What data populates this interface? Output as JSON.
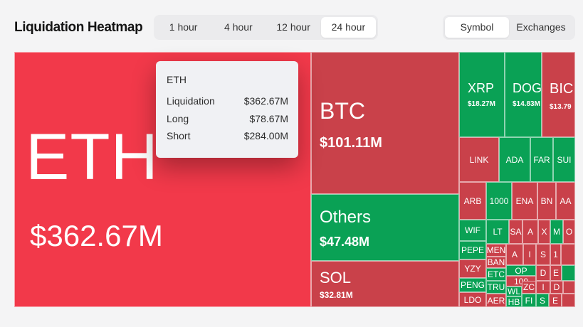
{
  "header": {
    "title": "Liquidation Heatmap",
    "time_options": [
      "1 hour",
      "4 hour",
      "12 hour",
      "24 hour"
    ],
    "time_selected": "24 hour",
    "view_options": [
      "Symbol",
      "Exchanges"
    ],
    "view_selected": "Symbol"
  },
  "tooltip": {
    "symbol": "ETH",
    "rows": [
      {
        "label": "Liquidation",
        "value": "$362.67M"
      },
      {
        "label": "Long",
        "value": "$78.67M"
      },
      {
        "label": "Short",
        "value": "$284.00M"
      }
    ]
  },
  "heatmap": {
    "big": [
      {
        "symbol": "ETH",
        "value": "$362.67M",
        "color": "#f2394a"
      },
      {
        "symbol": "BTC",
        "value": "$101.11M",
        "color": "#c9414a"
      },
      {
        "symbol": "Others",
        "value": "$47.48M",
        "color": "#0aa155"
      },
      {
        "symbol": "SOL",
        "value": "$32.81M",
        "color": "#c9414a"
      },
      {
        "symbol": "XRP",
        "value": "$18.27M",
        "color": "#0aa155"
      },
      {
        "symbol": "DOG",
        "value": "$14.83M",
        "color": "#0aa155"
      },
      {
        "symbol": "BIC",
        "value": "$13.79",
        "color": "#c9414a"
      }
    ],
    "small": [
      "LINK",
      "ADA",
      "FAR",
      "SUI",
      "ARB",
      "1000",
      "ENA",
      "BN",
      "AA",
      "WIF",
      "LT",
      "SA",
      "A",
      "X",
      "M",
      "O",
      "PEPE",
      "MEN",
      "A",
      "I",
      "S",
      "BAN",
      "1",
      "YZY",
      "ETC",
      "OP",
      "D",
      "E",
      "100",
      "E",
      "PENG",
      "TRU",
      "WL",
      "ZC",
      "I",
      "D",
      "LDO",
      "AER",
      "HB",
      "FI",
      "S",
      "E"
    ]
  }
}
